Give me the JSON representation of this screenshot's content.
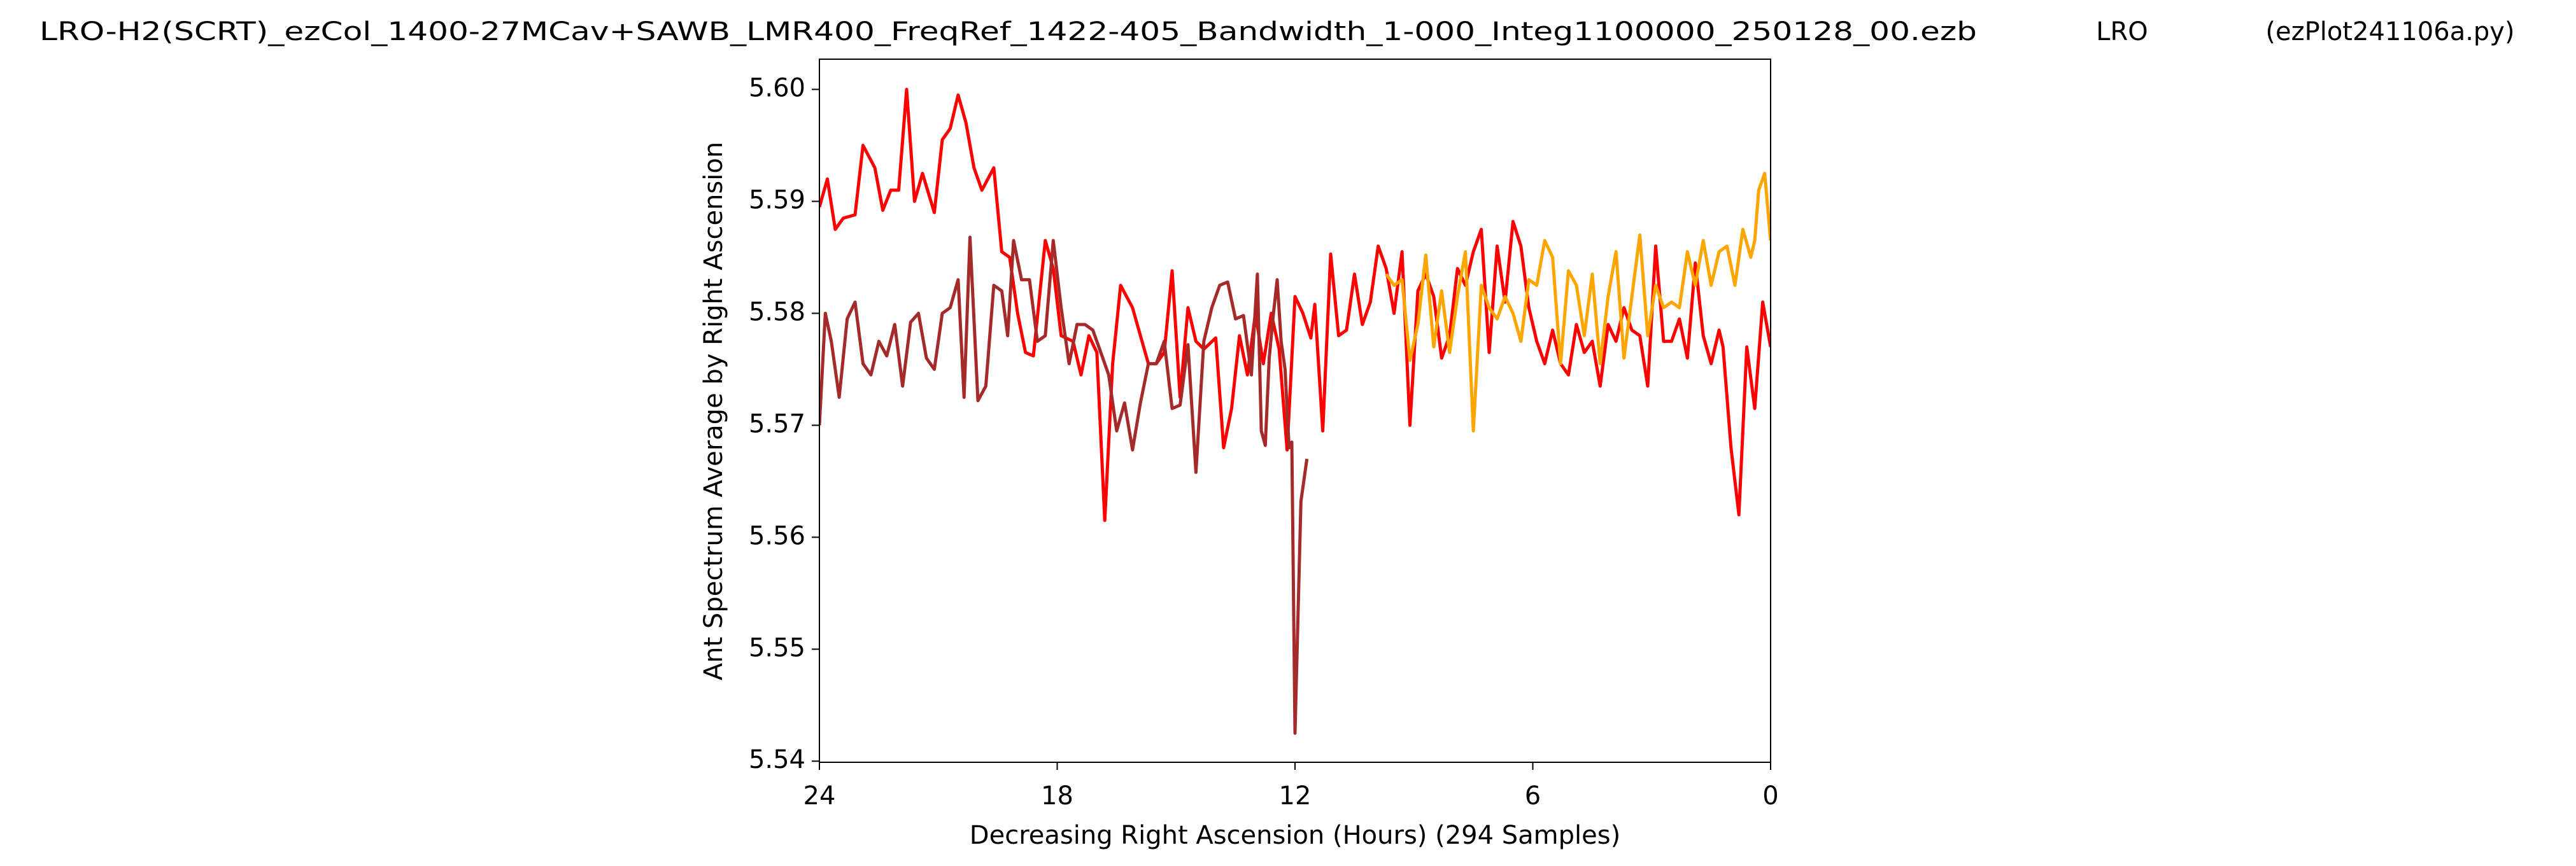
{
  "chart_data": {
    "type": "line",
    "title": "LRO-H2(SCRT)_ezCol_1400-27MCav+SAWB_LMR400_FreqRef_1422-405_Bandwidth_1-000_Integ1100000_250128_00.ezb",
    "title_center": "LRO",
    "title_right": "(ezPlot241106a.py)",
    "xlabel": "Decreasing Right Ascension (Hours) (294 Samples)",
    "ylabel": "Ant Spectrum Average by Right Ascension",
    "xlim": [
      24,
      0
    ],
    "ylim": [
      5.5399,
      5.6027
    ],
    "xticks": [
      24,
      18,
      12,
      6,
      0
    ],
    "yticks": [
      5.54,
      5.55,
      5.56,
      5.57,
      5.58,
      5.59,
      {
        "value": 5.6,
        "label": "5.60"
      }
    ],
    "series": [
      {
        "color": "#ff0000",
        "x": [
          24,
          23.8,
          23.6,
          23.4,
          23.1,
          22.9,
          22.6,
          22.4,
          22.2,
          22.0,
          21.8,
          21.6,
          21.4,
          21.1,
          20.9,
          20.7,
          20.5,
          20.3,
          20.1,
          19.9,
          19.6,
          19.4,
          19.2,
          19.0,
          18.8,
          18.6,
          18.3,
          18.1,
          17.9,
          17.6,
          17.4,
          17.2,
          17.0,
          16.8,
          16.6,
          16.4,
          16.1,
          15.9,
          15.7,
          15.5,
          15.3,
          15.1,
          14.9,
          14.7,
          14.5,
          14.3,
          14.0,
          13.8,
          13.6,
          13.4,
          13.2,
          13.0,
          12.8,
          12.6,
          12.4,
          12.2,
          12.0,
          11.8,
          11.6,
          11.5,
          11.3,
          11.1,
          10.9,
          10.7,
          10.5,
          10.3,
          10.1,
          9.9,
          9.7,
          9.5,
          9.3,
          9.1,
          8.9,
          8.7,
          8.5,
          8.3,
          8.1,
          7.9,
          7.7,
          7.5,
          7.3,
          7.1,
          6.9,
          6.7,
          6.5,
          6.3,
          6.1,
          5.9,
          5.7,
          5.5,
          5.3,
          5.1,
          4.9,
          4.7,
          4.5,
          4.3,
          4.1,
          3.9,
          3.7,
          3.5,
          3.3,
          3.1,
          2.9,
          2.7,
          2.5,
          2.3,
          2.1,
          1.9,
          1.7,
          1.5,
          1.3,
          1.2,
          1.0,
          0.8,
          0.6,
          0.4,
          0.2,
          0
        ],
        "values": [
          5.5895,
          5.592,
          5.5875,
          5.5885,
          5.5888,
          5.595,
          5.593,
          5.5892,
          5.591,
          5.591,
          5.6,
          5.59,
          5.5925,
          5.589,
          5.5955,
          5.5965,
          5.5995,
          5.597,
          5.593,
          5.591,
          5.593,
          5.5855,
          5.585,
          5.58,
          5.5765,
          5.5762,
          5.5865,
          5.584,
          5.578,
          5.5775,
          5.5745,
          5.578,
          5.5765,
          5.5615,
          5.5755,
          5.5825,
          5.5805,
          5.578,
          5.5755,
          5.5755,
          5.5765,
          5.5838,
          5.5725,
          5.5805,
          5.5775,
          5.5768,
          5.5778,
          5.568,
          5.5715,
          5.578,
          5.5745,
          5.58,
          5.5755,
          5.58,
          5.5768,
          5.5678,
          5.5815,
          5.58,
          5.5778,
          5.5808,
          5.5695,
          5.5853,
          5.578,
          5.5785,
          5.5835,
          5.579,
          5.581,
          5.586,
          5.584,
          5.58,
          5.5855,
          5.57,
          5.582,
          5.5835,
          5.5815,
          5.576,
          5.578,
          5.584,
          5.5825,
          5.5855,
          5.5875,
          5.5765,
          5.586,
          5.581,
          5.5882,
          5.586,
          5.5805,
          5.5775,
          5.5755,
          5.5785,
          5.5755,
          5.5745,
          5.579,
          5.5765,
          5.5775,
          5.5735,
          5.579,
          5.5775,
          5.5805,
          5.5785,
          5.578,
          5.5735,
          5.586,
          5.5775,
          5.5775,
          5.5795,
          5.576,
          5.5845,
          5.578,
          5.5755,
          5.5785,
          5.577,
          5.568,
          5.562,
          5.577,
          5.5715,
          5.581,
          5.577
        ]
      },
      {
        "color": "#a52a2a",
        "x": [
          24,
          23.85,
          23.7,
          23.5,
          23.3,
          23.1,
          22.9,
          22.7,
          22.5,
          22.3,
          22.1,
          21.9,
          21.7,
          21.5,
          21.3,
          21.1,
          20.9,
          20.7,
          20.5,
          20.35,
          20.2,
          20.0,
          19.8,
          19.6,
          19.4,
          19.25,
          19.1,
          18.9,
          18.7,
          18.5,
          18.3,
          18.1,
          17.9,
          17.7,
          17.5,
          17.3,
          17.1,
          16.9,
          16.7,
          16.5,
          16.3,
          16.1,
          15.9,
          15.7,
          15.5,
          15.3,
          15.1,
          14.9,
          14.7,
          14.5,
          14.3,
          14.1,
          13.9,
          13.7,
          13.5,
          13.3,
          13.1,
          12.95,
          12.85,
          12.75,
          12.65,
          12.55,
          12.45,
          12.35,
          12.25,
          12.15,
          12.08,
          12.0,
          11.85,
          11.7
        ],
        "values": [
          5.57,
          5.58,
          5.5775,
          5.5725,
          5.5795,
          5.581,
          5.5755,
          5.5745,
          5.5775,
          5.5762,
          5.579,
          5.5735,
          5.5792,
          5.58,
          5.576,
          5.575,
          5.58,
          5.5805,
          5.583,
          5.5725,
          5.5868,
          5.5722,
          5.5735,
          5.5825,
          5.582,
          5.578,
          5.5865,
          5.583,
          5.583,
          5.5775,
          5.578,
          5.5865,
          5.5805,
          5.5755,
          5.579,
          5.579,
          5.5785,
          5.5765,
          5.5745,
          5.5695,
          5.572,
          5.5678,
          5.572,
          5.5755,
          5.5755,
          5.5775,
          5.5715,
          5.5718,
          5.5772,
          5.5658,
          5.5775,
          5.5805,
          5.5825,
          5.5828,
          5.5795,
          5.5798,
          5.5745,
          5.5835,
          5.5695,
          5.5682,
          5.576,
          5.5798,
          5.583,
          5.5775,
          5.575,
          5.568,
          5.5685,
          5.5425,
          5.5632,
          5.567
        ]
      },
      {
        "color": "#ffa500",
        "x": [
          9.7,
          9.5,
          9.3,
          9.1,
          8.9,
          8.7,
          8.5,
          8.3,
          8.1,
          7.9,
          7.7,
          7.5,
          7.3,
          7.1,
          6.9,
          6.7,
          6.5,
          6.3,
          6.1,
          5.9,
          5.7,
          5.5,
          5.3,
          5.1,
          4.9,
          4.7,
          4.5,
          4.3,
          4.1,
          3.9,
          3.7,
          3.5,
          3.3,
          3.1,
          2.9,
          2.7,
          2.5,
          2.3,
          2.1,
          1.9,
          1.7,
          1.5,
          1.3,
          1.1,
          0.9,
          0.7,
          0.5,
          0.4,
          0.3,
          0.15,
          0
        ],
        "values": [
          5.5835,
          5.5825,
          5.583,
          5.5758,
          5.579,
          5.5852,
          5.577,
          5.582,
          5.5765,
          5.5815,
          5.5855,
          5.5695,
          5.5825,
          5.5805,
          5.5795,
          5.5815,
          5.58,
          5.5775,
          5.583,
          5.5825,
          5.5865,
          5.585,
          5.5755,
          5.5838,
          5.5825,
          5.578,
          5.5835,
          5.5755,
          5.5815,
          5.5855,
          5.576,
          5.5815,
          5.587,
          5.578,
          5.5825,
          5.5805,
          5.581,
          5.5805,
          5.5855,
          5.5825,
          5.5865,
          5.5825,
          5.5855,
          5.586,
          5.5825,
          5.5875,
          5.585,
          5.5865,
          5.591,
          5.5925,
          5.5865
        ]
      }
    ]
  }
}
